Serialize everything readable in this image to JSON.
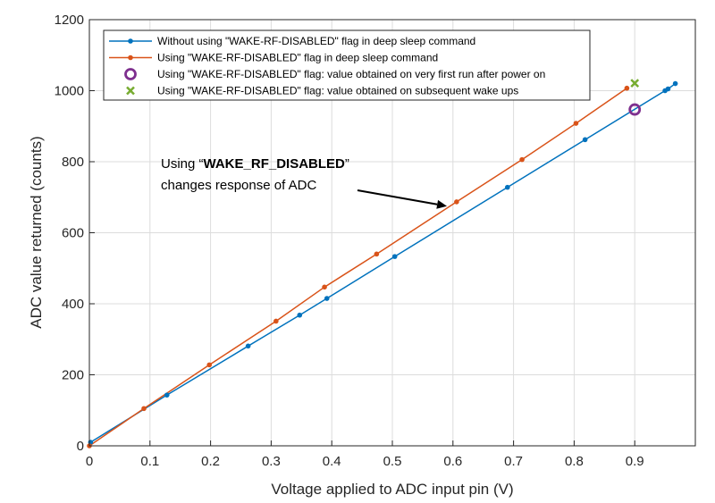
{
  "chart_data": {
    "type": "line",
    "title": "",
    "xlabel": "Voltage applied to ADC input pin (V)",
    "ylabel": "ADC value returned (counts)",
    "xlim": [
      0,
      1
    ],
    "ylim": [
      0,
      1200
    ],
    "xticks": [
      0,
      0.1,
      0.2,
      0.3,
      0.4,
      0.5,
      0.6,
      0.7,
      0.8,
      0.9
    ],
    "xtick_labels": [
      "0",
      "0.1",
      "0.2",
      "0.3",
      "0.4",
      "0.5",
      "0.6",
      "0.7",
      "0.8",
      "0.9"
    ],
    "yticks": [
      0,
      200,
      400,
      600,
      800,
      1000,
      1200
    ],
    "ytick_labels": [
      "0",
      "200",
      "400",
      "600",
      "800",
      "1000",
      "1200"
    ],
    "grid": true,
    "legend_position": "top",
    "series": [
      {
        "name": "Without using \"WAKE-RF-DISABLED\" flag in deep sleep command",
        "color": "#0072BD",
        "marker": "dot",
        "x": [
          0.002,
          0.128,
          0.262,
          0.347,
          0.392,
          0.504,
          0.69,
          0.818,
          0.95,
          0.955,
          0.967
        ],
        "y": [
          10,
          143,
          281,
          368,
          415,
          533,
          728,
          862,
          1000,
          1005,
          1020
        ]
      },
      {
        "name": "Using \"WAKE-RF-DISABLED\" flag in deep sleep command",
        "color": "#D95319",
        "marker": "dot",
        "x": [
          0,
          0.09,
          0.198,
          0.308,
          0.388,
          0.474,
          0.606,
          0.714,
          0.803,
          0.887
        ],
        "y": [
          0,
          105,
          228,
          351,
          447,
          540,
          687,
          806,
          908,
          1007
        ]
      },
      {
        "name": "Using \"WAKE-RF-DISABLED\" flag: value obtained on very first run after power on",
        "color": "#7E2F8E",
        "marker": "circle",
        "x": [
          0.9
        ],
        "y": [
          947
        ]
      },
      {
        "name": "Using \"WAKE-RF-DISABLED\" flag: value obtained on subsequent wake ups",
        "color": "#77AC30",
        "marker": "x",
        "x": [
          0.9
        ],
        "y": [
          1021
        ]
      }
    ],
    "annotation": {
      "prefix": "Using “",
      "bold": "WAKE_RF_DISABLED",
      "suffix": "”",
      "line2": "changes response of ADC",
      "arrow_target": [
        0.59,
        675
      ]
    }
  }
}
